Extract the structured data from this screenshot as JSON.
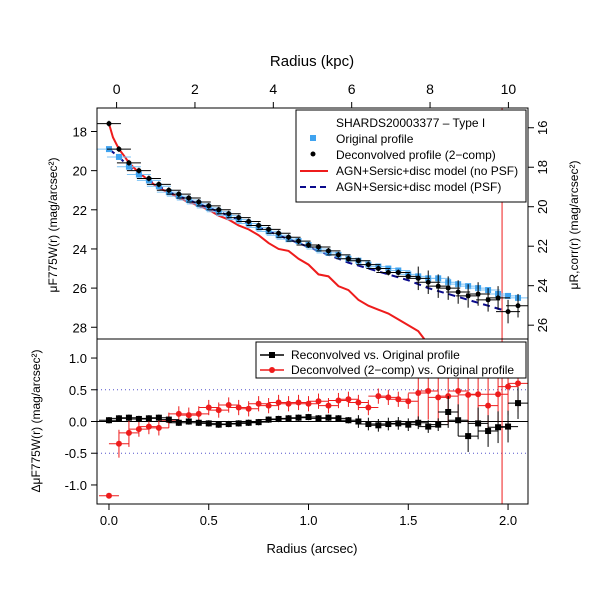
{
  "chart_data": [
    {
      "type": "scatter",
      "panel": "top",
      "title": "SHARDS20003377  –  Type I",
      "xlabel_top": "Radius (kpc)",
      "ylabel_left": "μF775W(r) (mag/arcsec²)",
      "ylabel_right": "μR,corr(r) (mag/arcsec²)",
      "xlim_arcsec": [
        -0.06,
        2.1
      ],
      "xlim_kpc": [
        -0.5,
        10.5
      ],
      "ylim_left": [
        28.6,
        16.8
      ],
      "ylim_right": [
        26.7,
        15.0
      ],
      "x_ticks_kpc": [
        0,
        2,
        4,
        6,
        8,
        10
      ],
      "y_ticks_left": [
        18,
        20,
        22,
        24,
        26,
        28
      ],
      "y_ticks_right": [
        16,
        18,
        20,
        22,
        24,
        26
      ],
      "legend_position": "top-right",
      "series": [
        {
          "name": "Original profile",
          "color": "#3fa3f0",
          "marker": "square",
          "x": [
            0.0,
            0.05,
            0.1,
            0.15,
            0.2,
            0.25,
            0.3,
            0.35,
            0.4,
            0.45,
            0.5,
            0.55,
            0.6,
            0.65,
            0.7,
            0.75,
            0.8,
            0.85,
            0.9,
            0.95,
            1.0,
            1.05,
            1.1,
            1.15,
            1.2,
            1.25,
            1.3,
            1.35,
            1.4,
            1.45,
            1.5,
            1.55,
            1.6,
            1.65,
            1.7,
            1.75,
            1.8,
            1.85,
            1.9,
            1.95,
            2.0,
            2.05
          ],
          "y": [
            18.9,
            19.3,
            19.8,
            20.2,
            20.5,
            20.8,
            21.1,
            21.3,
            21.5,
            21.7,
            21.9,
            22.1,
            22.3,
            22.5,
            22.7,
            22.9,
            23.1,
            23.3,
            23.5,
            23.6,
            23.8,
            24.0,
            24.2,
            24.3,
            24.5,
            24.6,
            24.8,
            24.9,
            25.0,
            25.1,
            25.3,
            25.4,
            25.5,
            25.5,
            25.7,
            25.8,
            25.9,
            26.0,
            26.1,
            26.3,
            26.4,
            26.5
          ]
        },
        {
          "name": "Deconvolved profile (2−comp)",
          "color": "#000000",
          "marker": "circle",
          "x": [
            0.0,
            0.05,
            0.1,
            0.15,
            0.2,
            0.25,
            0.3,
            0.35,
            0.4,
            0.45,
            0.5,
            0.55,
            0.6,
            0.65,
            0.7,
            0.75,
            0.8,
            0.85,
            0.9,
            0.95,
            1.0,
            1.05,
            1.1,
            1.15,
            1.2,
            1.25,
            1.3,
            1.35,
            1.4,
            1.45,
            1.5,
            1.55,
            1.6,
            1.65,
            1.7,
            1.75,
            1.8,
            1.85,
            1.9,
            1.95,
            2.0,
            2.05
          ],
          "y": [
            17.6,
            18.9,
            19.6,
            20.0,
            20.4,
            20.7,
            21.0,
            21.2,
            21.4,
            21.6,
            21.8,
            22.0,
            22.2,
            22.4,
            22.6,
            22.8,
            23.0,
            23.2,
            23.4,
            23.6,
            23.8,
            23.9,
            24.1,
            24.3,
            24.5,
            24.6,
            24.8,
            25.0,
            25.2,
            25.2,
            25.4,
            25.5,
            25.7,
            25.9,
            26.0,
            26.2,
            26.4,
            26.3,
            26.6,
            26.5,
            27.2,
            26.9
          ]
        },
        {
          "name": "AGN+Sersic+disc model (no PSF)",
          "color": "#ee1c1c",
          "line": "solid",
          "x": [
            0.0,
            0.02,
            0.05,
            0.08,
            0.1,
            0.15,
            0.2,
            0.25,
            0.3,
            0.35,
            0.4,
            0.45,
            0.5,
            0.55,
            0.6,
            0.65,
            0.7,
            0.75,
            0.8,
            0.85,
            0.9,
            0.95,
            1.0,
            1.05,
            1.1,
            1.15,
            1.2,
            1.25,
            1.3,
            1.35,
            1.4,
            1.45,
            1.5,
            1.55,
            1.58
          ],
          "y": [
            17.6,
            18.3,
            18.9,
            19.3,
            19.6,
            20.1,
            20.5,
            20.9,
            21.1,
            21.4,
            21.6,
            21.8,
            22.0,
            22.3,
            22.5,
            22.8,
            23.0,
            23.3,
            23.7,
            24.0,
            24.1,
            24.5,
            24.8,
            25.3,
            25.4,
            25.9,
            26.1,
            26.6,
            26.9,
            27.1,
            27.3,
            27.6,
            27.9,
            28.2,
            28.6
          ]
        },
        {
          "name": "AGN+Sersic+disc model (PSF)",
          "color": "#0a0a8c",
          "line": "dashed",
          "x": [
            0.0,
            0.05,
            0.1,
            0.15,
            0.2,
            0.3,
            0.4,
            0.5,
            0.6,
            0.7,
            0.8,
            0.9,
            1.0,
            1.1,
            1.2,
            1.3,
            1.4,
            1.5,
            1.6,
            1.7,
            1.8,
            1.9,
            2.0
          ],
          "y": [
            18.9,
            19.3,
            19.8,
            20.2,
            20.5,
            21.1,
            21.5,
            21.9,
            22.3,
            22.7,
            23.1,
            23.5,
            23.9,
            24.3,
            24.7,
            25.0,
            25.3,
            25.6,
            26.0,
            26.3,
            26.6,
            26.9,
            27.2
          ]
        }
      ]
    },
    {
      "type": "scatter",
      "panel": "bottom",
      "xlabel": "Radius (arcsec)",
      "ylabel": "ΔμF775W(r) (mag/arcsec²)",
      "xlim": [
        -0.06,
        2.1
      ],
      "ylim": [
        -1.3,
        1.3
      ],
      "x_ticks": [
        0.0,
        0.5,
        1.0,
        1.5,
        2.0
      ],
      "y_ticks": [
        -1.0,
        -0.5,
        0.0,
        0.5,
        1.0
      ],
      "reference_lines": {
        "solid": 0.0,
        "dotted": [
          -0.5,
          0.5
        ]
      },
      "vertical_line_x": 1.97,
      "legend_position": "top-right",
      "series": [
        {
          "name": "Reconvolved vs. Original profile",
          "color": "#000000",
          "marker": "square",
          "x": [
            0.0,
            0.05,
            0.1,
            0.15,
            0.2,
            0.25,
            0.3,
            0.35,
            0.4,
            0.45,
            0.5,
            0.55,
            0.6,
            0.65,
            0.7,
            0.75,
            0.8,
            0.85,
            0.9,
            0.95,
            1.0,
            1.05,
            1.1,
            1.15,
            1.2,
            1.25,
            1.3,
            1.35,
            1.4,
            1.45,
            1.5,
            1.55,
            1.6,
            1.65,
            1.7,
            1.75,
            1.8,
            1.85,
            1.9,
            1.95,
            2.0,
            2.05
          ],
          "y": [
            0.02,
            0.05,
            0.06,
            0.04,
            0.05,
            0.06,
            0.03,
            -0.02,
            0.0,
            -0.02,
            -0.03,
            -0.05,
            -0.04,
            -0.03,
            -0.02,
            -0.01,
            0.03,
            0.04,
            0.05,
            0.06,
            0.07,
            0.05,
            0.06,
            0.05,
            0.02,
            0.0,
            -0.04,
            -0.06,
            -0.04,
            -0.03,
            -0.05,
            -0.02,
            -0.08,
            -0.05,
            0.15,
            0.02,
            -0.23,
            -0.03,
            -0.15,
            -0.09,
            -0.08,
            0.29
          ]
        },
        {
          "name": "Deconvolved (2−comp) vs. Original profile",
          "color": "#ee1c1c",
          "marker": "circle",
          "x": [
            0.0,
            0.05,
            0.1,
            0.15,
            0.2,
            0.25,
            0.3,
            0.35,
            0.4,
            0.45,
            0.5,
            0.55,
            0.6,
            0.65,
            0.7,
            0.75,
            0.8,
            0.85,
            0.9,
            0.95,
            1.0,
            1.05,
            1.1,
            1.15,
            1.2,
            1.25,
            1.3,
            1.35,
            1.4,
            1.45,
            1.5,
            1.55,
            1.6,
            1.65,
            1.7,
            1.75,
            1.8,
            1.85,
            1.9,
            1.95,
            2.0,
            2.05
          ],
          "y": [
            -1.17,
            -0.35,
            -0.18,
            -0.12,
            -0.08,
            -0.1,
            0.02,
            0.12,
            0.1,
            0.12,
            0.22,
            0.18,
            0.26,
            0.22,
            0.2,
            0.28,
            0.25,
            0.3,
            0.28,
            0.3,
            0.28,
            0.32,
            0.25,
            0.33,
            0.35,
            0.3,
            0.22,
            0.4,
            0.38,
            0.35,
            0.32,
            0.45,
            0.48,
            0.38,
            0.4,
            0.48,
            0.42,
            0.43,
            0.25,
            0.43,
            0.55,
            0.6
          ]
        }
      ]
    }
  ]
}
